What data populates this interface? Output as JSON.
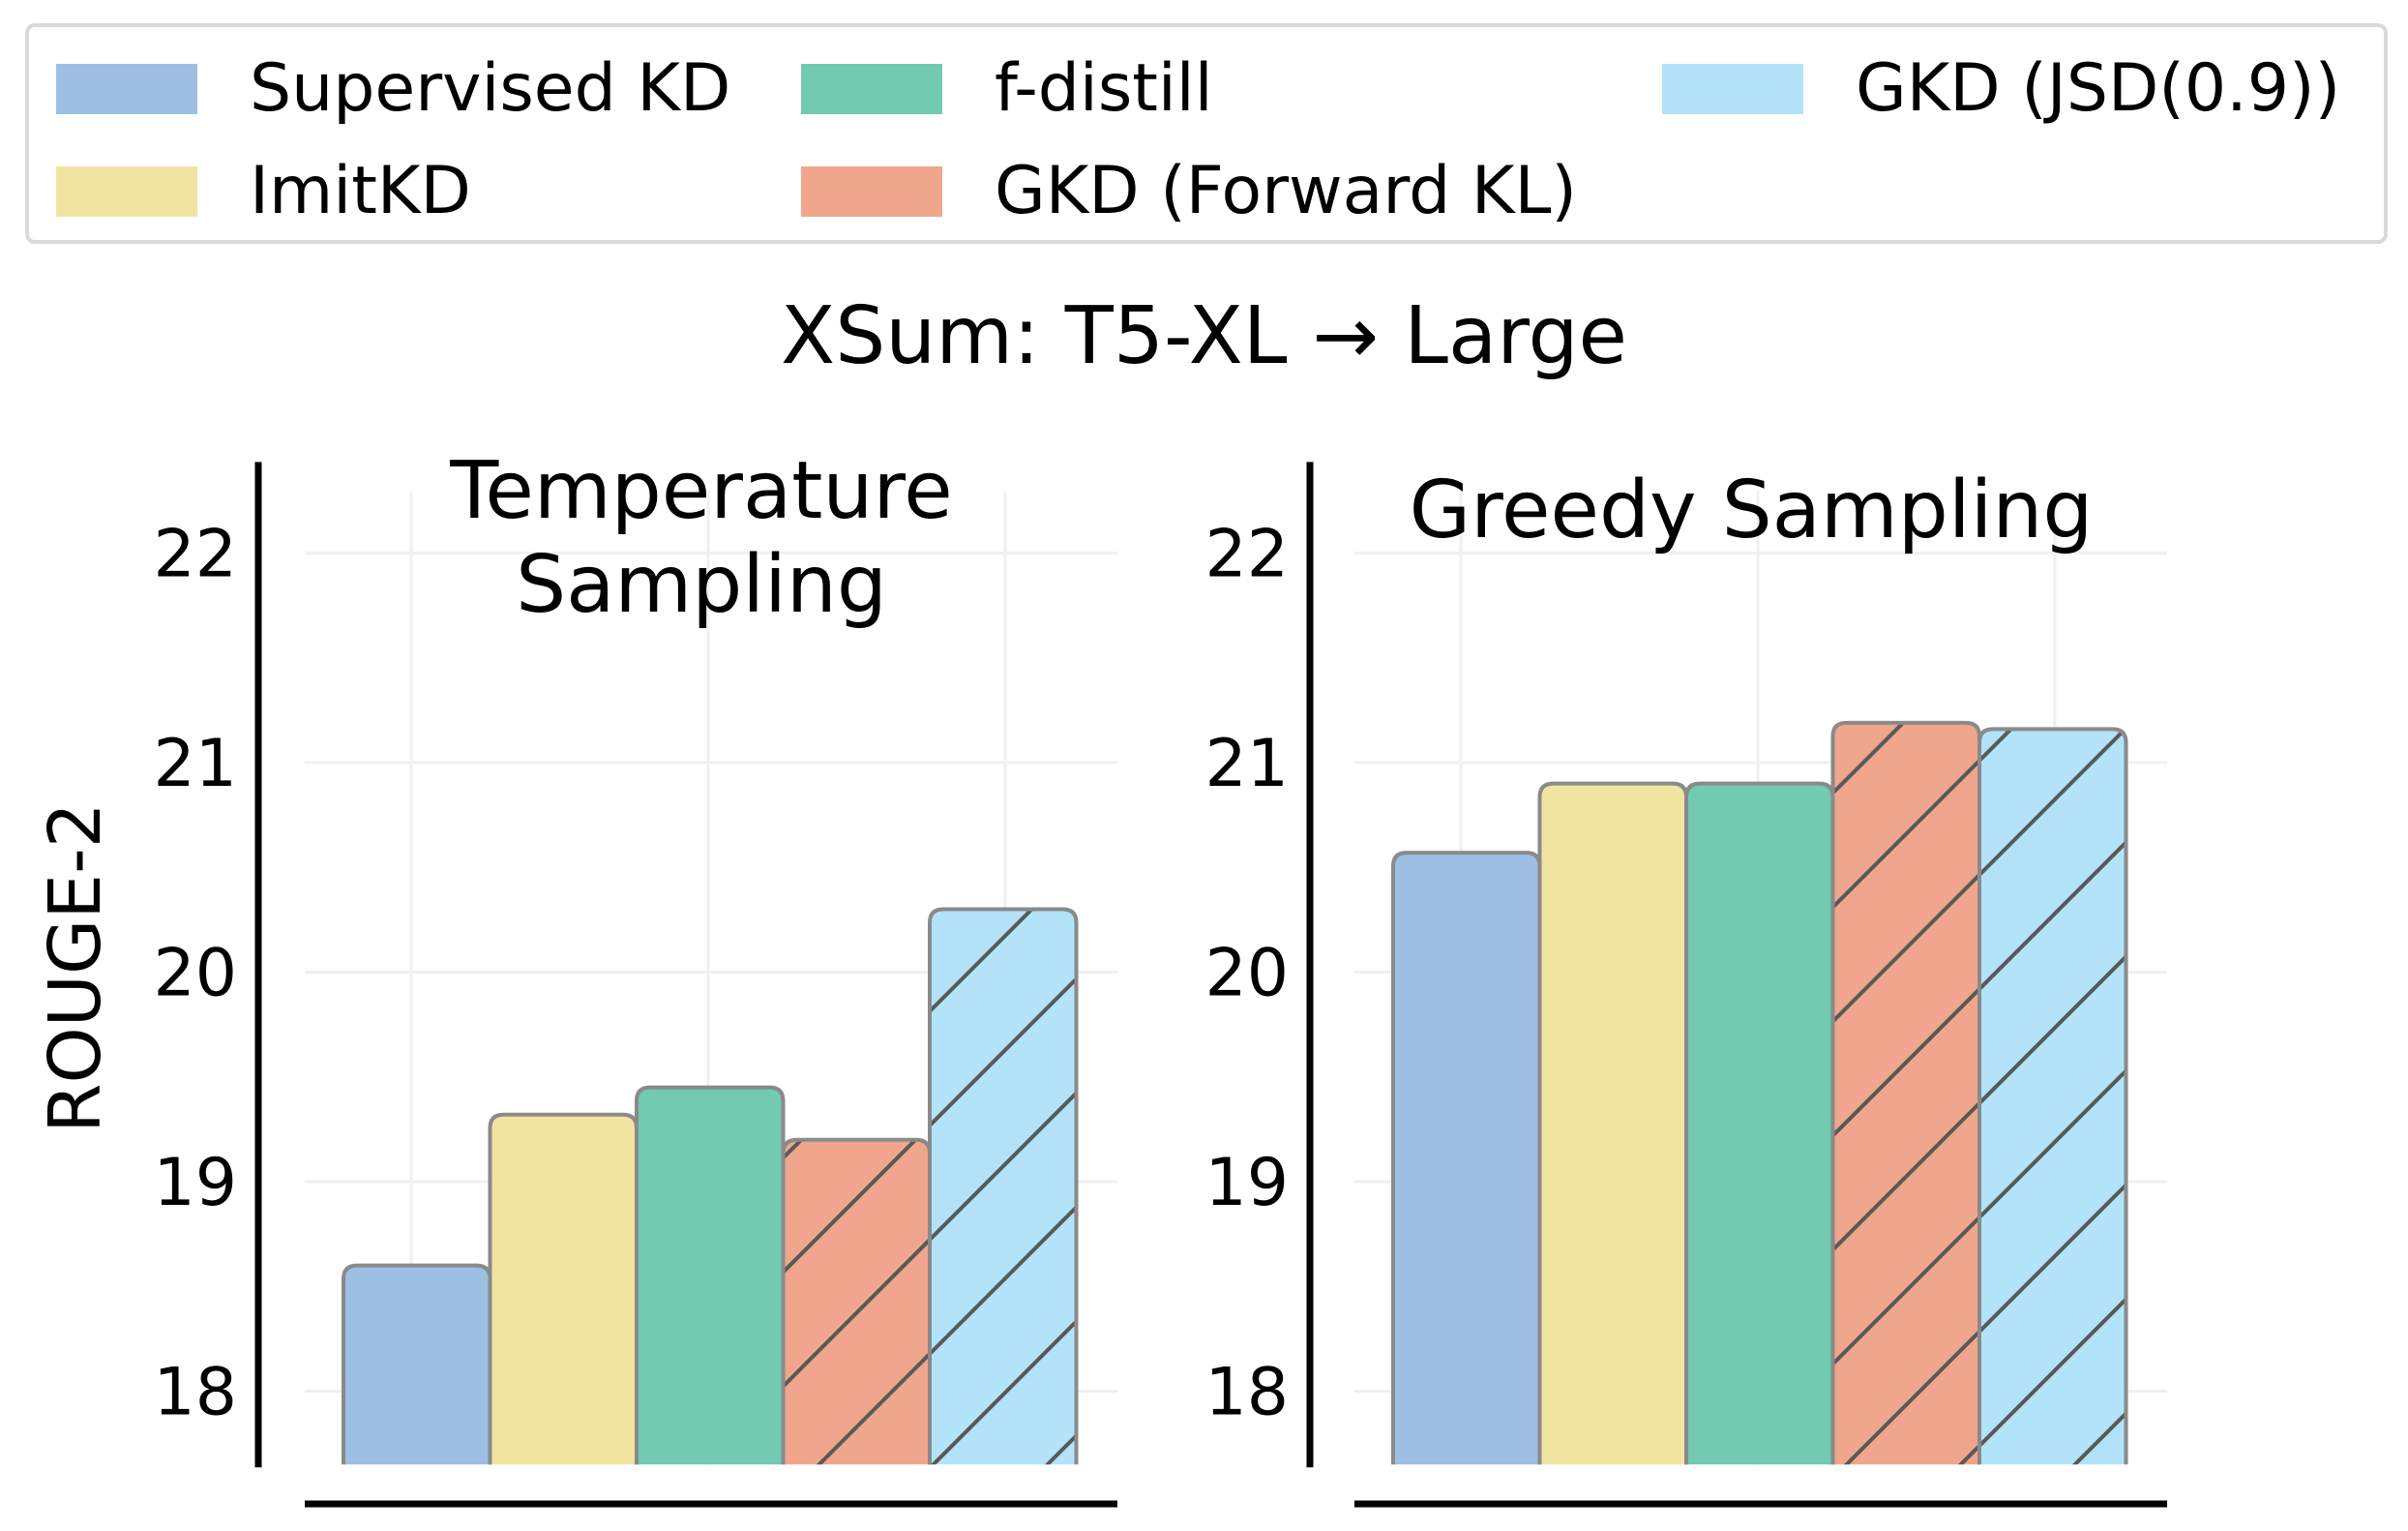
{
  "chart_data": {
    "type": "bar",
    "suptitle": "XSum: T5-XL → Large",
    "ylabel": "ROUGE-2",
    "ylim": [
      17.65,
      22.25
    ],
    "yticks": [
      "18",
      "19",
      "20",
      "21",
      "22"
    ],
    "grid": true,
    "legend_position": "top",
    "series": [
      {
        "name": "Supervised KD",
        "color": "#9cbfe3",
        "hatch": false
      },
      {
        "name": "ImitKD",
        "color": "#f1e4a1",
        "hatch": false
      },
      {
        "name": "f-distill",
        "color": "#72cab0",
        "hatch": false
      },
      {
        "name": "GKD (Forward KL)",
        "color": "#f0a68c",
        "hatch": true
      },
      {
        "name": "GKD (JSD(0.9))",
        "color": "#b2e3f9",
        "hatch": true
      }
    ],
    "panels": [
      {
        "title": [
          "Temperature",
          "Sampling"
        ],
        "values": [
          18.6,
          19.32,
          19.45,
          19.2,
          20.3
        ]
      },
      {
        "title": [
          "Greedy Sampling"
        ],
        "values": [
          20.57,
          20.9,
          20.9,
          21.19,
          21.16
        ]
      }
    ]
  }
}
